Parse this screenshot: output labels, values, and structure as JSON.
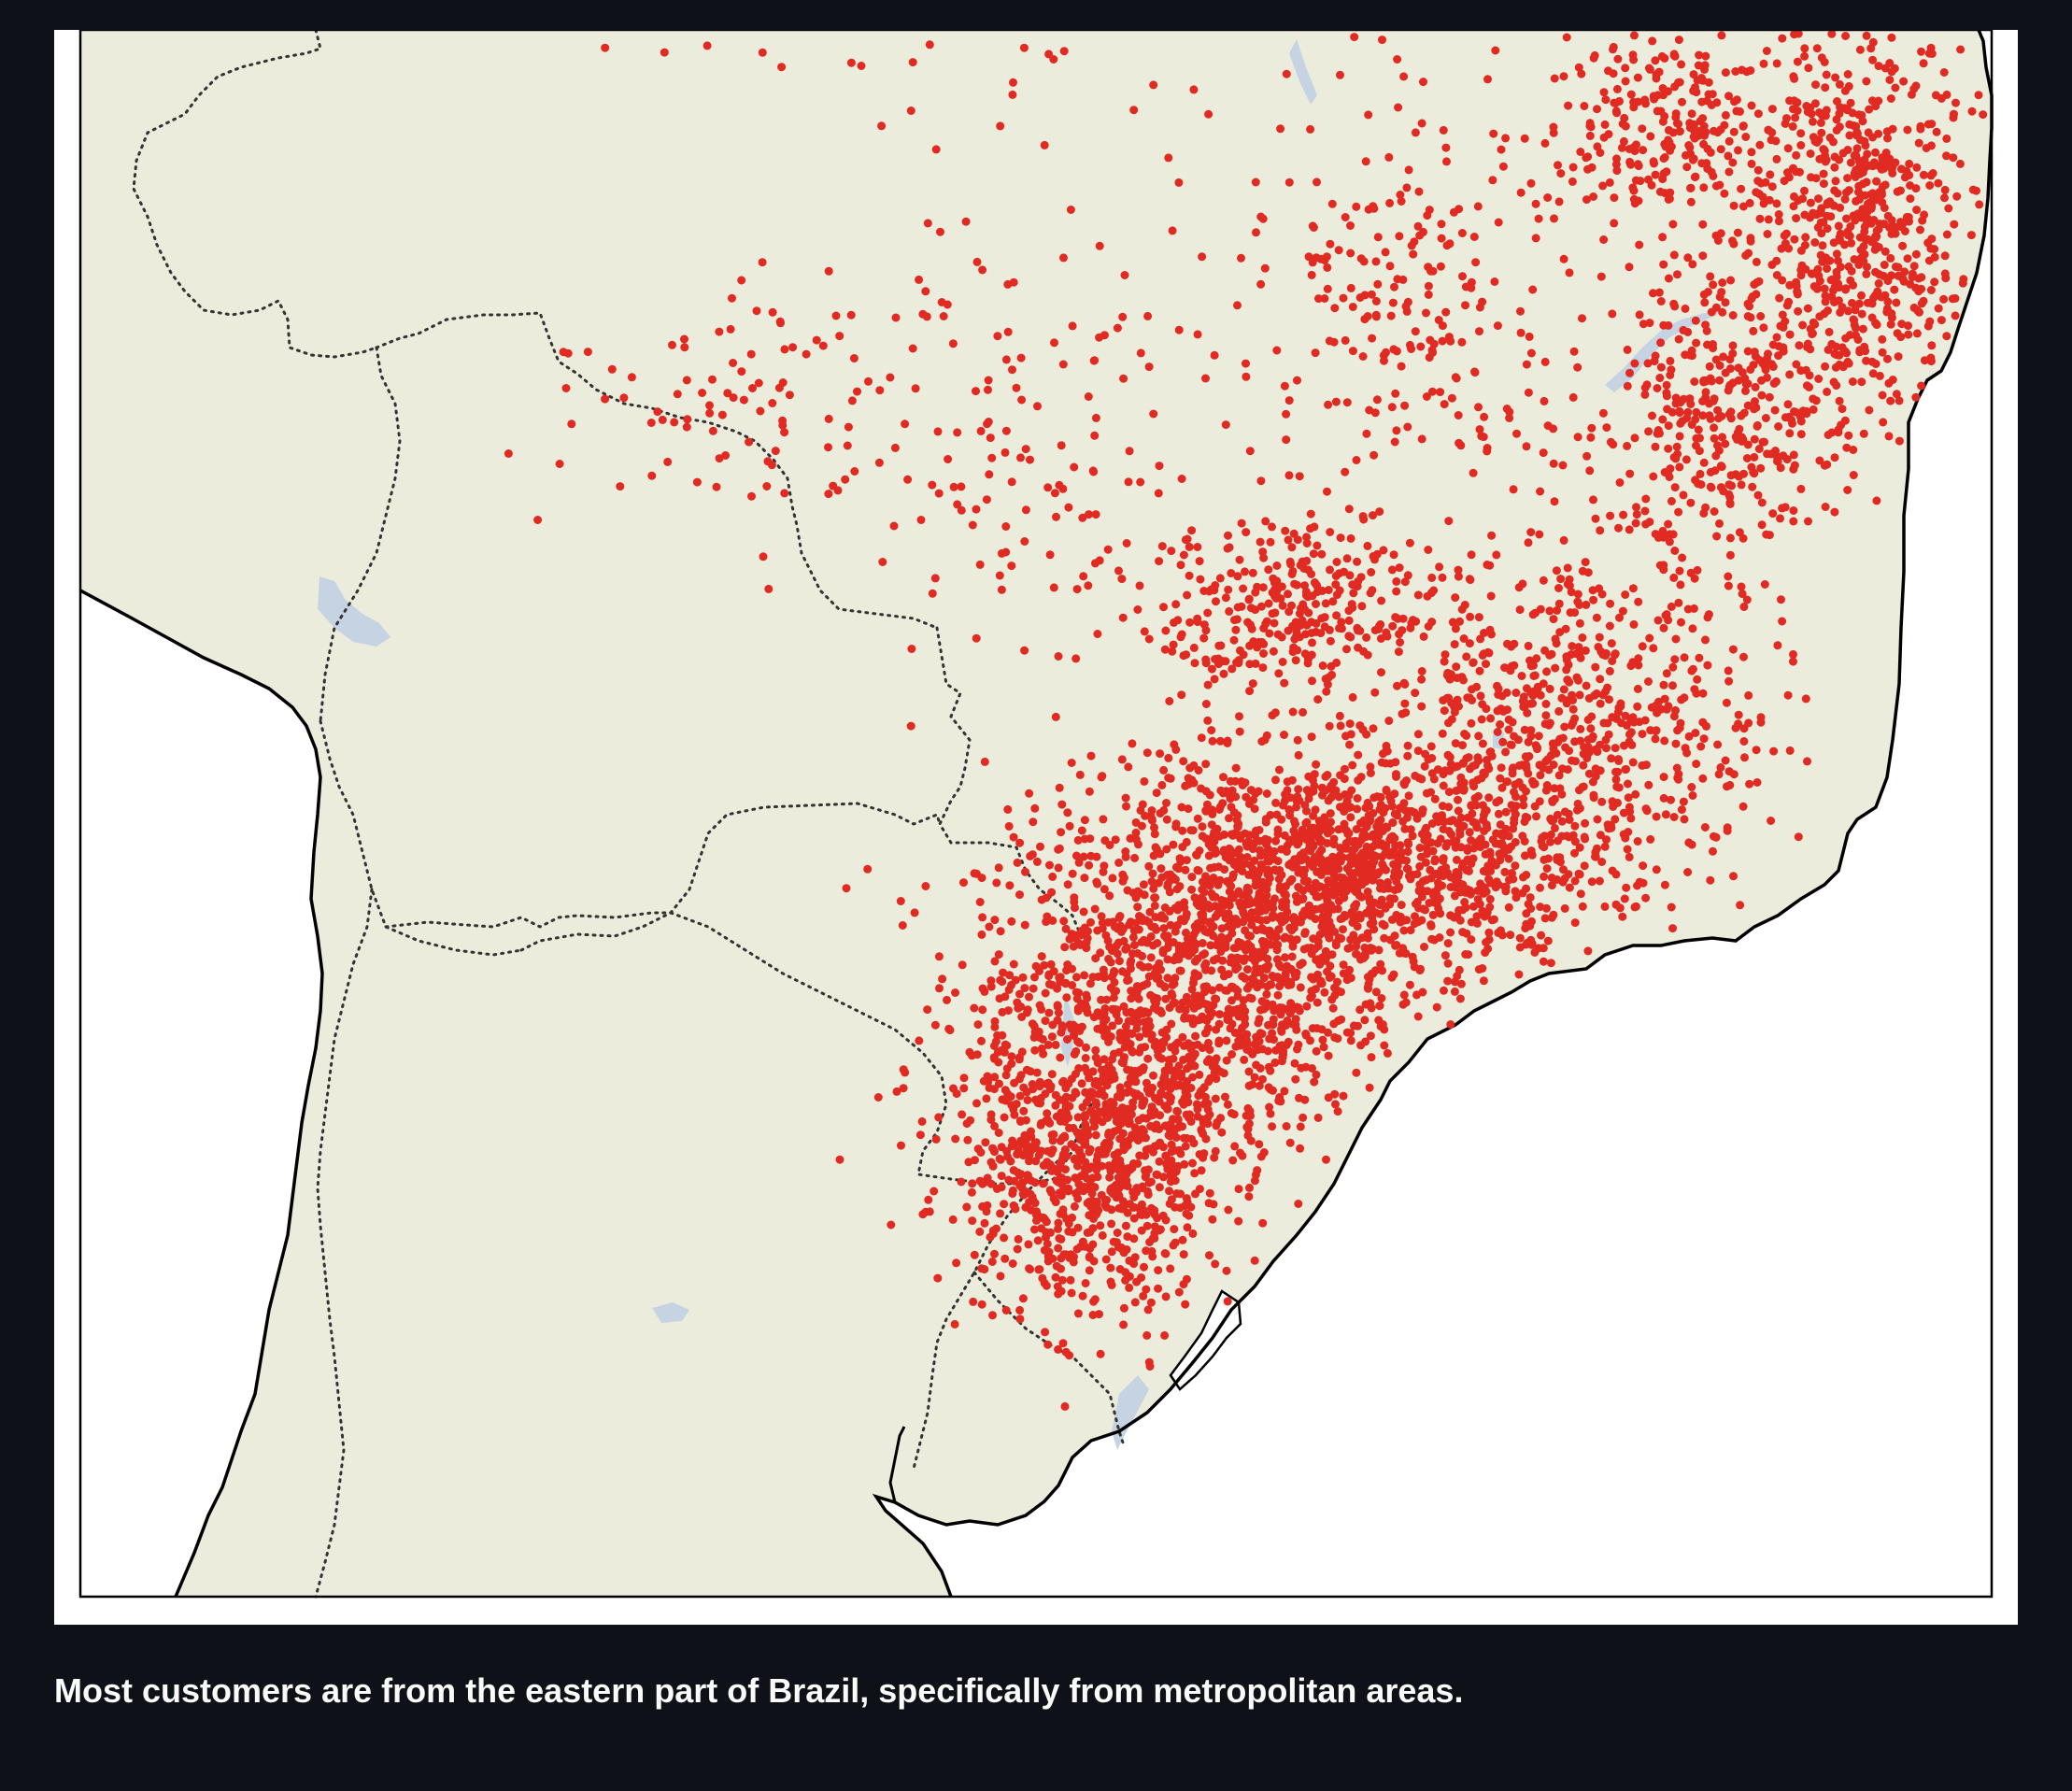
{
  "caption": "Most customers are from the eastern part of Brazil, specifically from metropolitan areas.",
  "colors": {
    "page_background": "#0e1117",
    "figure_background": "#ffffff",
    "land": "#ececdc",
    "ocean": "#ffffff",
    "lakes": "#c5d3e3",
    "coastline": "#000000",
    "borders": "#333333",
    "customer_points": "#e02a22",
    "caption_text": "#fafafa"
  },
  "map": {
    "region": "South America – Brazil and neighbouring countries",
    "layers": [
      "land",
      "lakes",
      "coastline",
      "country-borders",
      "customer-locations"
    ],
    "border_style": "dotted",
    "frame": true
  },
  "chart_data": {
    "type": "scatter",
    "title": "",
    "xlabel": "",
    "ylabel": "",
    "series": [
      {
        "clusters": [
          {
            "cx": 0.66,
            "cy": 0.53,
            "rx": 0.11,
            "ry": 0.06,
            "n": 1400
          },
          {
            "cx": 0.58,
            "cy": 0.62,
            "rx": 0.09,
            "ry": 0.08,
            "n": 1100
          },
          {
            "cx": 0.53,
            "cy": 0.72,
            "rx": 0.06,
            "ry": 0.08,
            "n": 900
          },
          {
            "cx": 0.78,
            "cy": 0.44,
            "rx": 0.08,
            "ry": 0.09,
            "n": 650
          },
          {
            "cx": 0.93,
            "cy": 0.12,
            "rx": 0.05,
            "ry": 0.11,
            "n": 700
          },
          {
            "cx": 0.86,
            "cy": 0.24,
            "rx": 0.05,
            "ry": 0.08,
            "n": 350
          },
          {
            "cx": 0.83,
            "cy": 0.06,
            "rx": 0.05,
            "ry": 0.05,
            "n": 250
          },
          {
            "cx": 0.63,
            "cy": 0.37,
            "rx": 0.06,
            "ry": 0.05,
            "n": 320
          },
          {
            "cx": 0.7,
            "cy": 0.18,
            "rx": 0.08,
            "ry": 0.12,
            "n": 260
          },
          {
            "cx": 0.49,
            "cy": 0.26,
            "rx": 0.09,
            "ry": 0.12,
            "n": 140
          },
          {
            "cx": 0.34,
            "cy": 0.23,
            "rx": 0.08,
            "ry": 0.06,
            "n": 90
          },
          {
            "cx": 0.47,
            "cy": 0.03,
            "rx": 0.15,
            "ry": 0.03,
            "n": 25
          }
        ]
      }
    ]
  }
}
